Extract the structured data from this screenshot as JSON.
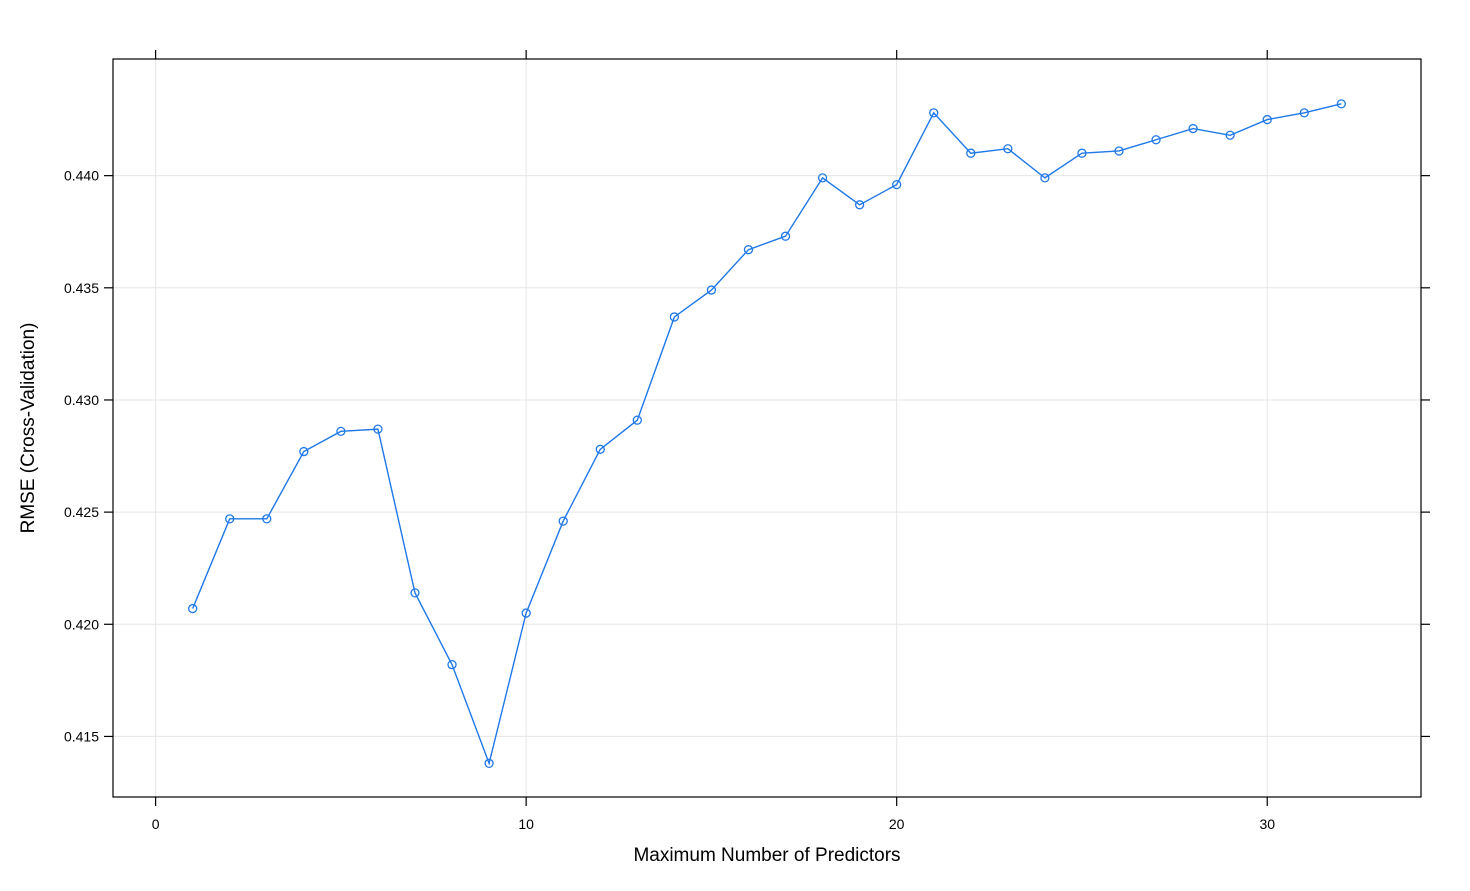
{
  "colors": {
    "series": "#1f78e8",
    "grid": "#e6e6e6",
    "frame": "#000000",
    "background": "#ffffff"
  },
  "chart_data": {
    "type": "line",
    "title": "",
    "xlabel": "Maximum Number of Predictors",
    "ylabel": "RMSE (Cross-Validation)",
    "xlim": [
      -1.15,
      34.15
    ],
    "ylim": [
      0.4123,
      0.4452
    ],
    "grid": true,
    "x_ticks": [
      0,
      10,
      20,
      30
    ],
    "x_tick_labels": [
      "0",
      "10",
      "20",
      "30"
    ],
    "y_ticks": [
      0.415,
      0.42,
      0.425,
      0.43,
      0.435,
      0.44
    ],
    "y_tick_labels": [
      "0.415",
      "0.420",
      "0.425",
      "0.430",
      "0.435",
      "0.440"
    ],
    "marker": "open-circle",
    "x": [
      1,
      2,
      3,
      4,
      5,
      6,
      7,
      8,
      9,
      10,
      11,
      12,
      13,
      14,
      15,
      16,
      17,
      18,
      19,
      20,
      21,
      22,
      23,
      24,
      25,
      26,
      27,
      28,
      29,
      30,
      31,
      32
    ],
    "series": [
      {
        "values": [
          0.4207,
          0.4247,
          0.4247,
          0.4277,
          0.4286,
          0.4287,
          0.4214,
          0.4182,
          0.4138,
          0.4205,
          0.4246,
          0.4278,
          0.4291,
          0.4337,
          0.4349,
          0.4367,
          0.4373,
          0.4399,
          0.4387,
          0.4396,
          0.4428,
          0.441,
          0.4412,
          0.4399,
          0.441,
          0.4411,
          0.4416,
          0.4421,
          0.4418,
          0.4425,
          0.4428,
          0.4432
        ]
      }
    ]
  }
}
